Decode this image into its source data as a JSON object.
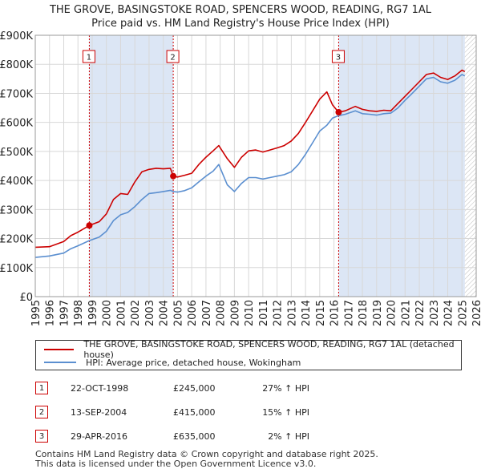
{
  "title_line1": "THE GROVE, BASINGSTOKE ROAD, SPENCERS WOOD, READING, RG7 1AL",
  "title_line2": "Price paid vs. HM Land Registry's House Price Index (HPI)",
  "colors": {
    "property": "#cc0000",
    "hpi": "#5b8fd0",
    "shade": "#dce6f5",
    "grid": "#d8d8d8",
    "marker_border": "#cc0000"
  },
  "chart_data": {
    "type": "line",
    "title": "Price paid vs. HM Land Registry's House Price Index (HPI)",
    "xlabel": "",
    "ylabel": "",
    "xlim": [
      1995,
      2026
    ],
    "ylim": [
      0,
      900000
    ],
    "x_ticks": [
      "1995",
      "1996",
      "1997",
      "1998",
      "1999",
      "2000",
      "2001",
      "2002",
      "2003",
      "2004",
      "2005",
      "2006",
      "2007",
      "2008",
      "2009",
      "2010",
      "2011",
      "2012",
      "2013",
      "2014",
      "2015",
      "2016",
      "2017",
      "2018",
      "2019",
      "2020",
      "2021",
      "2022",
      "2023",
      "2024",
      "2025",
      "2026"
    ],
    "y_ticks": [
      {
        "value": 0,
        "label": "£0"
      },
      {
        "value": 100000,
        "label": "£100K"
      },
      {
        "value": 200000,
        "label": "£200K"
      },
      {
        "value": 300000,
        "label": "£300K"
      },
      {
        "value": 400000,
        "label": "£400K"
      },
      {
        "value": 500000,
        "label": "£500K"
      },
      {
        "value": 600000,
        "label": "£600K"
      },
      {
        "value": 700000,
        "label": "£700K"
      },
      {
        "value": 800000,
        "label": "£800K"
      },
      {
        "value": 900000,
        "label": "£900K"
      }
    ],
    "shaded_ranges": [
      [
        1998.8,
        2004.7
      ],
      [
        2016.33,
        2025.2
      ]
    ],
    "hatched_from": 2025.2,
    "series": [
      {
        "name": "THE GROVE, BASINGSTOKE ROAD, SPENCERS WOOD, READING, RG7 1AL (detached house)",
        "color_key": "property",
        "x": [
          1995.0,
          1996.0,
          1997.0,
          1997.5,
          1998.0,
          1998.8,
          1999.5,
          2000.0,
          2000.5,
          2001.0,
          2001.5,
          2002.0,
          2002.5,
          2003.0,
          2003.5,
          2004.0,
          2004.5,
          2004.7,
          2005.0,
          2005.5,
          2006.0,
          2006.5,
          2007.0,
          2007.5,
          2007.9,
          2008.5,
          2009.0,
          2009.5,
          2010.0,
          2010.5,
          2011.0,
          2011.5,
          2012.0,
          2012.5,
          2013.0,
          2013.5,
          2014.0,
          2014.5,
          2015.0,
          2015.5,
          2015.9,
          2016.33,
          2016.8,
          2017.5,
          2018.0,
          2018.5,
          2019.0,
          2019.5,
          2020.0,
          2020.5,
          2021.0,
          2021.5,
          2022.0,
          2022.5,
          2023.0,
          2023.5,
          2024.0,
          2024.5,
          2025.0,
          2025.2
        ],
        "y": [
          170000,
          172000,
          190000,
          210000,
          222000,
          245000,
          258000,
          285000,
          335000,
          355000,
          352000,
          395000,
          430000,
          438000,
          442000,
          440000,
          442000,
          415000,
          412000,
          418000,
          425000,
          455000,
          480000,
          502000,
          520000,
          475000,
          445000,
          480000,
          502000,
          505000,
          498000,
          505000,
          512000,
          520000,
          536000,
          562000,
          600000,
          640000,
          680000,
          705000,
          660000,
          635000,
          640000,
          655000,
          645000,
          640000,
          638000,
          642000,
          640000,
          665000,
          690000,
          715000,
          740000,
          765000,
          770000,
          755000,
          748000,
          760000,
          780000,
          775000
        ]
      },
      {
        "name": "HPI: Average price, detached house, Wokingham",
        "color_key": "hpi",
        "x": [
          1995.0,
          1996.0,
          1997.0,
          1997.5,
          1998.0,
          1998.8,
          1999.5,
          2000.0,
          2000.5,
          2001.0,
          2001.5,
          2002.0,
          2002.5,
          2003.0,
          2003.5,
          2004.0,
          2004.5,
          2004.7,
          2005.0,
          2005.5,
          2006.0,
          2006.5,
          2007.0,
          2007.5,
          2007.9,
          2008.5,
          2009.0,
          2009.5,
          2010.0,
          2010.5,
          2011.0,
          2011.5,
          2012.0,
          2012.5,
          2013.0,
          2013.5,
          2014.0,
          2014.5,
          2015.0,
          2015.5,
          2015.9,
          2016.33,
          2016.8,
          2017.5,
          2018.0,
          2018.5,
          2019.0,
          2019.5,
          2020.0,
          2020.5,
          2021.0,
          2021.5,
          2022.0,
          2022.5,
          2023.0,
          2023.5,
          2024.0,
          2024.5,
          2025.0,
          2025.2
        ],
        "y": [
          135000,
          140000,
          150000,
          165000,
          175000,
          193000,
          205000,
          225000,
          262000,
          282000,
          290000,
          310000,
          335000,
          355000,
          358000,
          362000,
          366000,
          362000,
          360000,
          365000,
          375000,
          395000,
          415000,
          432000,
          455000,
          385000,
          362000,
          390000,
          410000,
          410000,
          405000,
          410000,
          415000,
          420000,
          430000,
          455000,
          490000,
          530000,
          570000,
          590000,
          615000,
          623000,
          628000,
          640000,
          630000,
          628000,
          625000,
          630000,
          632000,
          650000,
          676000,
          700000,
          725000,
          750000,
          755000,
          740000,
          735000,
          745000,
          765000,
          760000
        ]
      }
    ],
    "sales": [
      {
        "label": "1",
        "x": 1998.8,
        "y": 245000
      },
      {
        "label": "2",
        "x": 2004.7,
        "y": 415000
      },
      {
        "label": "3",
        "x": 2016.33,
        "y": 635000
      }
    ]
  },
  "legend": {
    "property_label": "THE GROVE, BASINGSTOKE ROAD, SPENCERS WOOD, READING, RG7 1AL (detached house)",
    "hpi_label": "HPI: Average price, detached house, Wokingham"
  },
  "sales_table": [
    {
      "num": "1",
      "date": "22-OCT-1998",
      "price": "£245,000",
      "hpi": "27% ↑ HPI"
    },
    {
      "num": "2",
      "date": "13-SEP-2004",
      "price": "£415,000",
      "hpi": "15% ↑ HPI"
    },
    {
      "num": "3",
      "date": "29-APR-2016",
      "price": "£635,000",
      "hpi": "2% ↑ HPI"
    }
  ],
  "footer_line1": "Contains HM Land Registry data © Crown copyright and database right 2025.",
  "footer_line2": "This data is licensed under the Open Government Licence v3.0."
}
